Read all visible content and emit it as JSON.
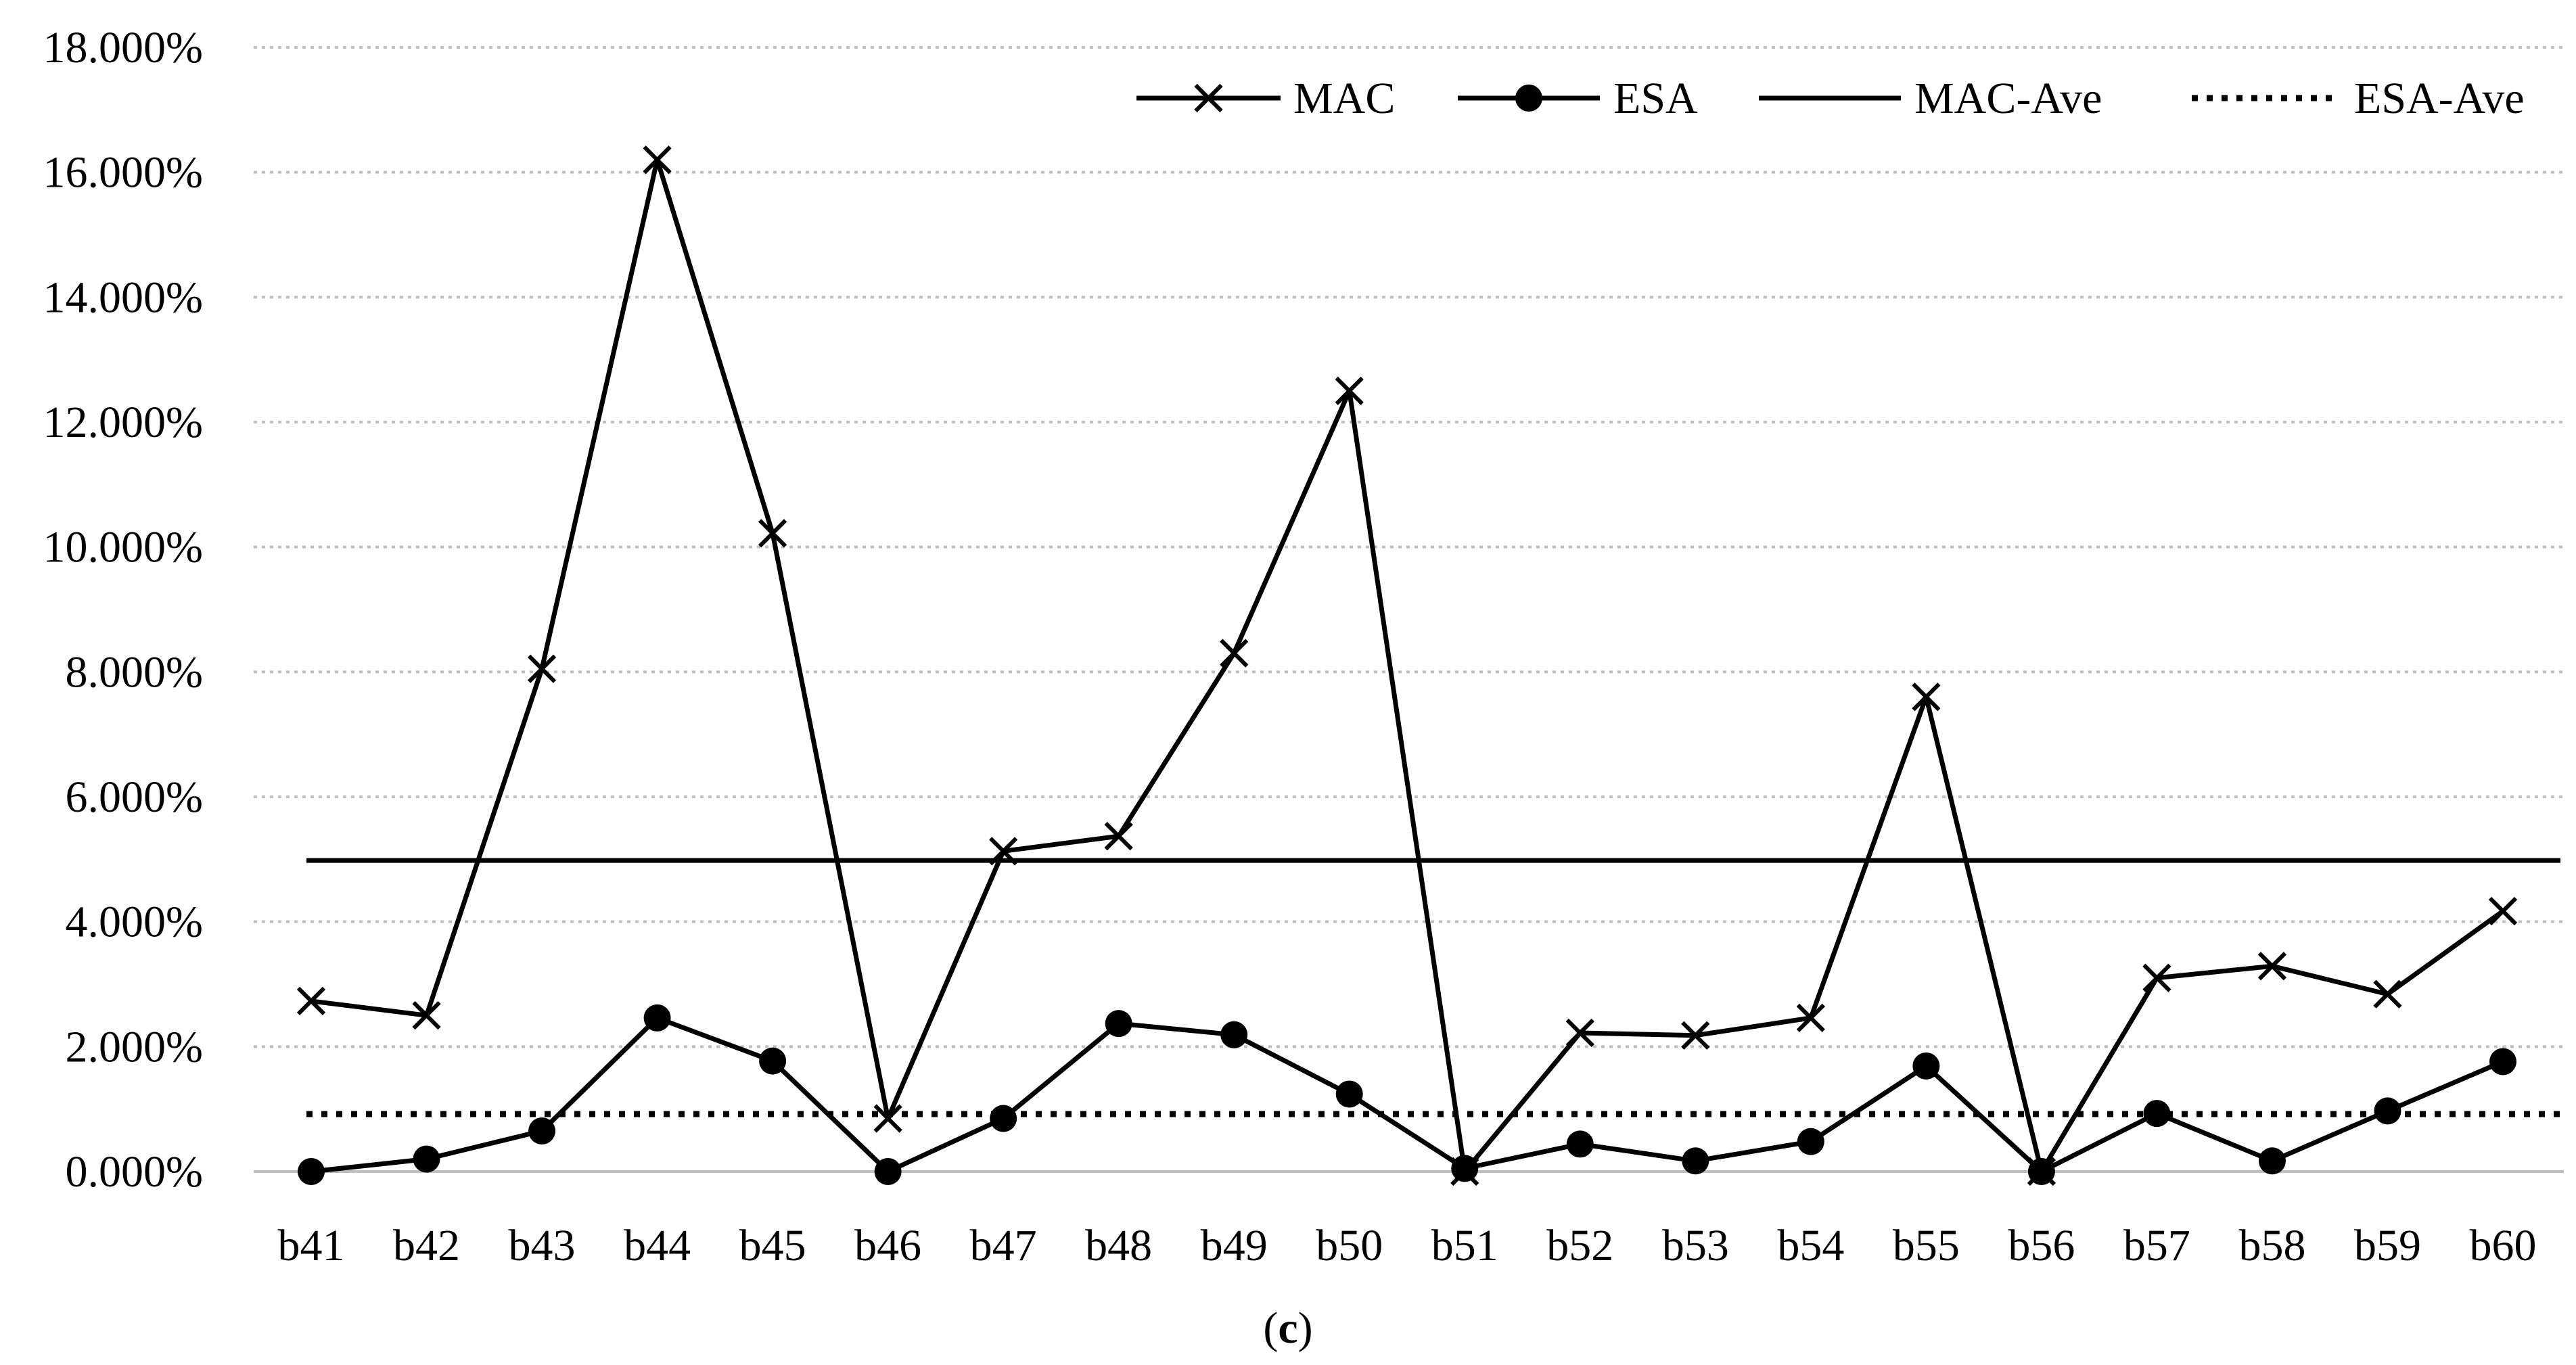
{
  "chart_data": {
    "type": "line",
    "categories": [
      "b41",
      "b42",
      "b43",
      "b44",
      "b45",
      "b46",
      "b47",
      "b48",
      "b49",
      "b50",
      "b51",
      "b52",
      "b53",
      "b54",
      "b55",
      "b56",
      "b57",
      "b58",
      "b59",
      "b60"
    ],
    "series": [
      {
        "name": "MAC",
        "marker": "x",
        "line_style": "solid",
        "values": [
          2.73,
          2.5,
          8.05,
          16.2,
          10.22,
          0.85,
          5.13,
          5.37,
          8.3,
          12.5,
          0.0,
          2.22,
          2.18,
          2.46,
          7.6,
          0.0,
          3.1,
          3.29,
          2.84,
          4.17
        ]
      },
      {
        "name": "ESA",
        "marker": "filled-circle",
        "line_style": "solid",
        "values": [
          0.0,
          0.2,
          0.65,
          2.46,
          1.77,
          0.0,
          0.85,
          2.37,
          2.19,
          1.24,
          0.05,
          0.44,
          0.17,
          0.48,
          1.69,
          0.0,
          0.93,
          0.17,
          0.97,
          1.76
        ]
      },
      {
        "name": "MAC-Ave",
        "marker": "none",
        "line_style": "solid",
        "value": 4.98
      },
      {
        "name": "ESA-Ave",
        "marker": "none",
        "line_style": "dotted",
        "value": 0.92
      }
    ],
    "y_ticks": [
      "0.000%",
      "2.000%",
      "4.000%",
      "6.000%",
      "8.000%",
      "10.000%",
      "12.000%",
      "14.000%",
      "16.000%",
      "18.000%"
    ],
    "ylim": [
      0,
      18
    ],
    "y_unit": "%",
    "grid": "horizontal-dotted",
    "legend_position": "top-right",
    "caption": {
      "open": "(",
      "letter": "c",
      "close": ")"
    },
    "colors": {
      "line": "#000000",
      "grid": "#bfbfbf",
      "background": "#ffffff"
    }
  }
}
